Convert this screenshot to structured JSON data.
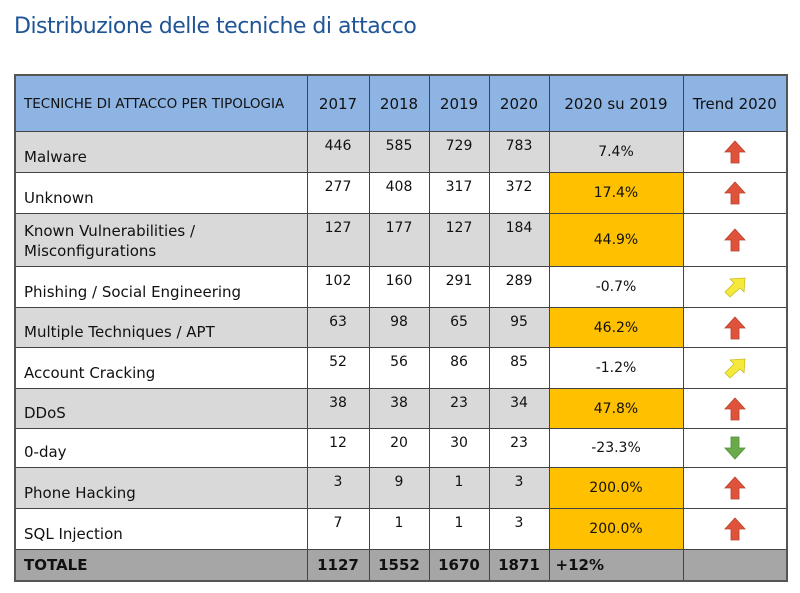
{
  "title": "Distribuzione delle tecniche di attacco",
  "colors": {
    "header": "#8eb4e3",
    "row_alt": "#d9d9d9",
    "highlight": "#ffc000",
    "total": "#a6a6a6",
    "up": "#e0533a",
    "up_mild": "#f5e93c",
    "down": "#6aaa4a"
  },
  "table": {
    "headers": [
      "TECNICHE DI ATTACCO PER TIPOLOGIA",
      "2017",
      "2018",
      "2019",
      "2020",
      "2020 su 2019",
      "Trend 2020"
    ],
    "rows": [
      {
        "label": "Malware",
        "values": [
          "446",
          "585",
          "729",
          "783"
        ],
        "change": "7.4%",
        "highlight": false,
        "trend": "arrow-up-icon"
      },
      {
        "label": "Unknown",
        "values": [
          "277",
          "408",
          "317",
          "372"
        ],
        "change": "17.4%",
        "highlight": true,
        "trend": "arrow-up-icon"
      },
      {
        "label": "Known Vulnerabilities / Misconfigurations",
        "values": [
          "127",
          "177",
          "127",
          "184"
        ],
        "change": "44.9%",
        "highlight": true,
        "trend": "arrow-up-icon"
      },
      {
        "label": "Phishing / Social Engineering",
        "values": [
          "102",
          "160",
          "291",
          "289"
        ],
        "change": "-0.7%",
        "highlight": false,
        "trend": "arrow-up-right-icon"
      },
      {
        "label": "Multiple Techniques / APT",
        "values": [
          "63",
          "98",
          "65",
          "95"
        ],
        "change": "46.2%",
        "highlight": true,
        "trend": "arrow-up-icon"
      },
      {
        "label": "Account Cracking",
        "values": [
          "52",
          "56",
          "86",
          "85"
        ],
        "change": "-1.2%",
        "highlight": false,
        "trend": "arrow-up-right-icon"
      },
      {
        "label": "DDoS",
        "values": [
          "38",
          "38",
          "23",
          "34"
        ],
        "change": "47.8%",
        "highlight": true,
        "trend": "arrow-up-icon"
      },
      {
        "label": "0-day",
        "values": [
          "12",
          "20",
          "30",
          "23"
        ],
        "change": "-23.3%",
        "highlight": false,
        "trend": "arrow-down-icon"
      },
      {
        "label": "Phone Hacking",
        "values": [
          "3",
          "9",
          "1",
          "3"
        ],
        "change": "200.0%",
        "highlight": true,
        "trend": "arrow-up-icon"
      },
      {
        "label": "SQL Injection",
        "values": [
          "7",
          "1",
          "1",
          "3"
        ],
        "change": "200.0%",
        "highlight": true,
        "trend": "arrow-up-icon"
      }
    ],
    "total": {
      "label": "TOTALE",
      "values": [
        "1127",
        "1552",
        "1670",
        "1871"
      ],
      "change": "+12%"
    }
  }
}
